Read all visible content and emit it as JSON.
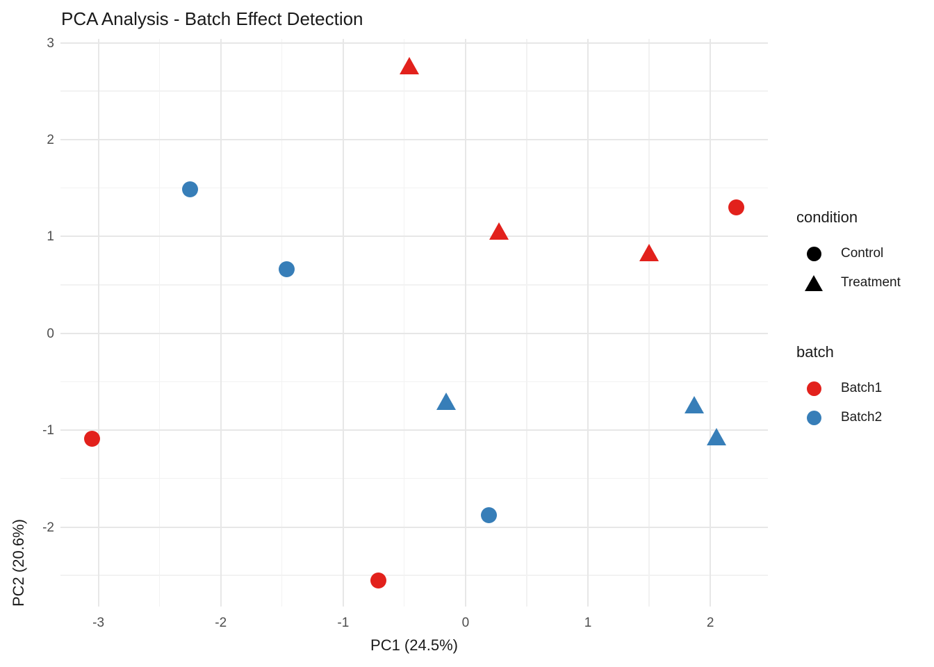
{
  "title": "PCA Analysis - Batch Effect Detection",
  "chart_data": {
    "type": "scatter",
    "title": "PCA Analysis - Batch Effect Detection",
    "xlabel": "PC1 (24.5%)",
    "ylabel": "PC2 (20.6%)",
    "xlim": [
      -3.31,
      2.47
    ],
    "ylim": [
      -2.82,
      3.04
    ],
    "x_major_ticks": [
      -3,
      -2,
      -1,
      0,
      1,
      2
    ],
    "x_minor_ticks": [
      -2.5,
      -1.5,
      -0.5,
      0.5,
      1.5
    ],
    "y_major_ticks": [
      3,
      2,
      1,
      0,
      -1,
      -2
    ],
    "y_minor_ticks": [
      2.5,
      1.5,
      0.5,
      -0.5,
      -1.5,
      -2.5
    ],
    "grid": "major and minor gridlines, no panel border",
    "legend_position": "right",
    "series": [
      {
        "name": "Batch1 Control",
        "batch": "Batch1",
        "condition": "Control",
        "shape": "circle",
        "color": "#E2211C",
        "points": [
          {
            "x": 2.21,
            "y": 1.3
          },
          {
            "x": -3.05,
            "y": -1.09
          },
          {
            "x": -0.71,
            "y": -2.55
          }
        ]
      },
      {
        "name": "Batch1 Treatment",
        "batch": "Batch1",
        "condition": "Treatment",
        "shape": "triangle",
        "color": "#E2211C",
        "points": [
          {
            "x": -0.46,
            "y": 2.76
          },
          {
            "x": 0.27,
            "y": 1.05
          },
          {
            "x": 1.5,
            "y": 0.83
          }
        ]
      },
      {
        "name": "Batch2 Control",
        "batch": "Batch2",
        "condition": "Control",
        "shape": "circle",
        "color": "#377EB8",
        "points": [
          {
            "x": -2.25,
            "y": 1.49
          },
          {
            "x": -1.46,
            "y": 0.66
          },
          {
            "x": 0.19,
            "y": -1.88
          }
        ]
      },
      {
        "name": "Batch2 Treatment",
        "batch": "Batch2",
        "condition": "Treatment",
        "shape": "triangle",
        "color": "#377EB8",
        "points": [
          {
            "x": -0.16,
            "y": -0.71
          },
          {
            "x": 1.87,
            "y": -0.74
          },
          {
            "x": 2.05,
            "y": -1.07
          }
        ]
      }
    ]
  },
  "legend": {
    "condition": {
      "title": "condition",
      "items": [
        {
          "label": "Control",
          "shape": "circle",
          "color": "#000000"
        },
        {
          "label": "Treatment",
          "shape": "triangle",
          "color": "#000000"
        }
      ]
    },
    "batch": {
      "title": "batch",
      "items": [
        {
          "label": "Batch1",
          "shape": "circle",
          "color": "#E2211C"
        },
        {
          "label": "Batch2",
          "shape": "circle",
          "color": "#377EB8"
        }
      ]
    }
  },
  "colors": {
    "batch1": "#E2211C",
    "batch2": "#377EB8",
    "grid_major": "#E7E7E7",
    "grid_minor": "#F2F2F2",
    "tick_label": "#4D4D4D",
    "text": "#1A1A1A",
    "background": "#FFFFFF"
  }
}
